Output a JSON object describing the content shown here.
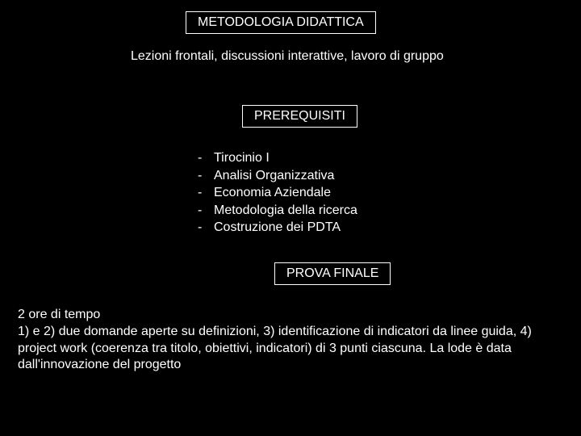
{
  "colors": {
    "background": "#000000",
    "text": "#ffffff",
    "border": "#ffffff"
  },
  "typography": {
    "font_family": "Arial",
    "body_fontsize": 16,
    "heading_fontsize": 16
  },
  "section1": {
    "heading": "METODOLOGIA  DIDATTICA",
    "body": "Lezioni frontali, discussioni interattive, lavoro di gruppo"
  },
  "section2": {
    "heading": "PREREQUISITI",
    "items": [
      "Tirocinio I",
      "Analisi Organizzativa",
      "Economia Aziendale",
      "Metodologia della ricerca",
      "Costruzione dei PDTA"
    ]
  },
  "section3": {
    "heading": "PROVA FINALE",
    "body": "2 ore di tempo\n1) e 2) due domande aperte su definizioni, 3) identificazione di indicatori da linee guida, 4) project work (coerenza tra titolo, obiettivi, indicatori) di 3 punti ciascuna. La lode è data dall'innovazione del progetto"
  }
}
